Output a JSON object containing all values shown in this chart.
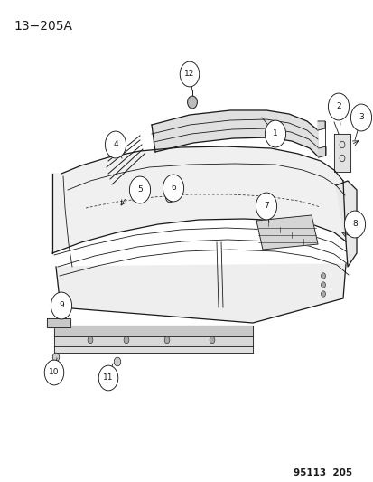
{
  "title": "13−205A",
  "footer": "95113  205",
  "bg_color": "#ffffff",
  "line_color": "#1a1a1a",
  "title_fontsize": 10,
  "footer_fontsize": 7.5,
  "callout_r": 0.028,
  "callout_fontsize": 6.5,
  "bumper_color": "#f5f5f5",
  "reinf_color": "#ebebeb",
  "shadow_color": "#cccccc"
}
